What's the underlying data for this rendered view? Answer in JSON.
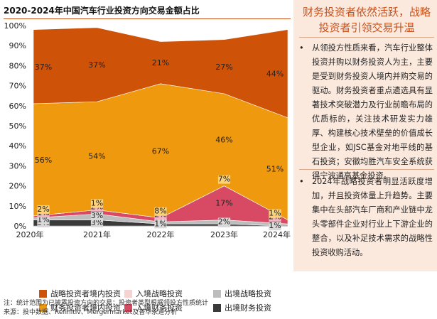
{
  "chart_data": {
    "type": "area",
    "title": "2020-2024年中国汽车行业投资方向交易金额占比",
    "categories": [
      "2020年",
      "2021年",
      "2022年",
      "2023年",
      "2024年"
    ],
    "ylim": [
      0,
      100
    ],
    "yticks": [
      "0%",
      "10%",
      "20%",
      "30%",
      "40%",
      "50%",
      "60%",
      "70%",
      "80%",
      "90%",
      "100%"
    ],
    "stack_order": [
      "出境财务投资",
      "出境战略投资",
      "入境财务投资",
      "入境战略投资",
      "财务投资者境内投资",
      "战略投资者境内投资"
    ],
    "series": [
      {
        "name": "出境财务投资",
        "color": "#3a3a3a",
        "values": [
          3,
          3,
          1,
          1,
          0
        ],
        "labels": [
          "3%",
          "3%",
          "1%",
          "1%",
          ""
        ]
      },
      {
        "name": "出境战略投资",
        "color": "#bdbdbd",
        "values": [
          1,
          3,
          1,
          2,
          1
        ],
        "labels": [
          "1%",
          "3%",
          "1%",
          "2%",
          "1%"
        ]
      },
      {
        "name": "入境财务投资",
        "color": "#d84a63",
        "values": [
          1,
          2,
          2,
          17,
          2
        ],
        "labels": [
          "1%",
          "2%",
          "2%",
          "17%",
          "2%"
        ]
      },
      {
        "name": "入境战略投资",
        "color": "#f6d3d3",
        "values": [
          0,
          0,
          0,
          0,
          0
        ],
        "labels": [
          "",
          "",
          "",
          "",
          ""
        ]
      },
      {
        "name": "财务投资者境内投资",
        "color": "#ef9a0e",
        "values": [
          56,
          54,
          67,
          46,
          51
        ],
        "labels": [
          "56%",
          "54%",
          "67%",
          "46%",
          "51%"
        ]
      },
      {
        "name": "战略投资者境内投资",
        "color": "#cf5209",
        "values": [
          37,
          37,
          21,
          27,
          44
        ],
        "labels": [
          "37%",
          "37%",
          "21%",
          "27%",
          "44%"
        ]
      }
    ],
    "extra_labels": [
      {
        "series": "财务投资者境内投资",
        "index": 0,
        "text": "2%"
      },
      {
        "series": "财务投资者境内投资",
        "index": 1,
        "text": "1%"
      },
      {
        "series": "财务投资者境内投资",
        "index": 2,
        "text": "8%"
      },
      {
        "series": "财务投资者境内投资",
        "index": 3,
        "text": "7%"
      },
      {
        "series": "财务投资者境内投资",
        "index": 4,
        "text": "1%"
      }
    ],
    "legend_position": "bottom",
    "legend": [
      {
        "name": "战略投资者境内投资",
        "color": "#cf5209"
      },
      {
        "name": "入境战略投资",
        "color": "#f6d3d3"
      },
      {
        "name": "出境战略投资",
        "color": "#bdbdbd"
      },
      {
        "name": "财务投资者境内投资",
        "color": "#ef9a0e"
      },
      {
        "name": "入境财务投资",
        "color": "#d84a63"
      },
      {
        "name": "出境财务投资",
        "color": "#3a3a3a"
      }
    ]
  },
  "panel": {
    "title": "财务投资者依然活跃，战略投资者引领交易升温",
    "bullets": [
      "从领投方性质来看，汽车行业整体投资并购以财务投资人为主，主要是受到财务投资人境内并购交易的驱动。财务投资者重点遴选具有显著技术突破潜力及行业前瞻布局的优质标的，关注技术研发实力雄厚、构建核心技术壁垒的价值成长型企业，如JSC基金对地平线的基石投资；安徽均胜汽车安全系统获得宁波通高基金投资。",
      "2024年战略投资者明显活跃度增加，并且投资体量上升趋势。主要集中在头部汽车厂商和产业链中龙头零部件企业对行业上下游企业的整合，以及补足技术需求的战略性投资收购活动。"
    ]
  },
  "footnotes": {
    "note": "注：统计范围为已披露投资方向的交易；投资者类型根据领投方性质统计",
    "source": "来源：投中数据、Refinitiv、Mergermarket及普华永道分析"
  }
}
